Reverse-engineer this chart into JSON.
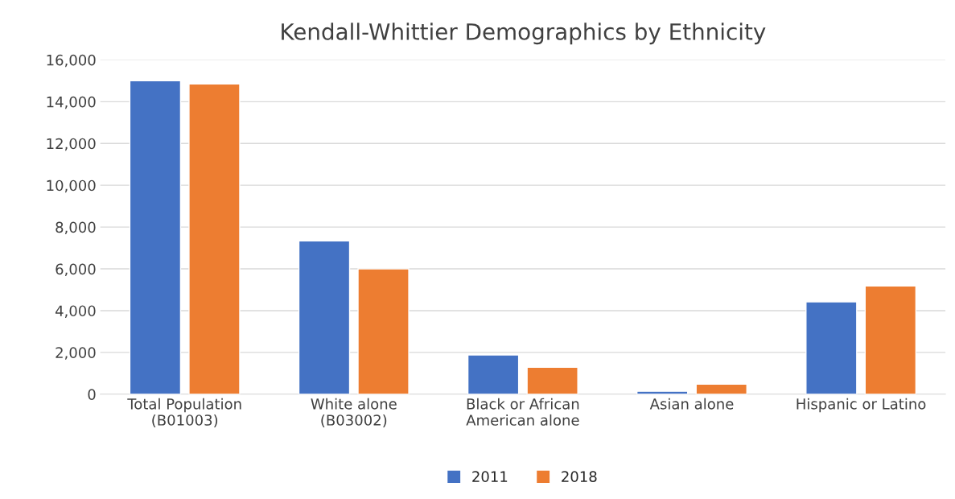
{
  "chart_data": {
    "type": "bar",
    "title": "Kendall-Whittier Demographics by Ethnicity",
    "categories": [
      "Total Population\n(B01003)",
      "White alone\n(B03002)",
      "Black or African\nAmerican alone",
      "Asian alone",
      "Hispanic or Latino"
    ],
    "series": [
      {
        "name": "2011",
        "color": "#4472c4",
        "values": [
          15000,
          7340,
          1880,
          140,
          4420
        ]
      },
      {
        "name": "2018",
        "color": "#ed7d31",
        "values": [
          14850,
          6000,
          1290,
          480,
          5180
        ]
      }
    ],
    "ylim": [
      0,
      16000
    ],
    "yticks": [
      {
        "value": 0,
        "label": "0"
      },
      {
        "value": 2000,
        "label": "2,000"
      },
      {
        "value": 4000,
        "label": "4,000"
      },
      {
        "value": 6000,
        "label": "6,000"
      },
      {
        "value": 8000,
        "label": "8,000"
      },
      {
        "value": 10000,
        "label": "10,000"
      },
      {
        "value": 12000,
        "label": "12,000"
      },
      {
        "value": 14000,
        "label": "14,000"
      },
      {
        "value": 16000,
        "label": "16,000"
      }
    ],
    "grid": "y",
    "legend": "bottom"
  }
}
